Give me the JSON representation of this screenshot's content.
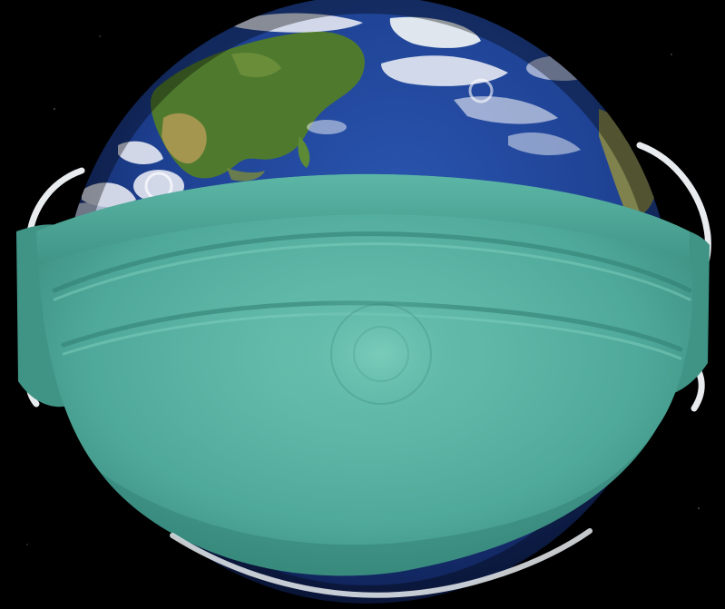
{
  "scene": {
    "subject": "earth-wearing-surgical-mask",
    "colors": {
      "space": "#000000",
      "ocean_deep": "#0e1f5c",
      "ocean_mid": "#1d3f8f",
      "land_green": "#4f7a2e",
      "land_desert": "#b39a55",
      "cloud": "#f2f4f8",
      "mask_base": "#4fa99a",
      "mask_light": "#6cc3b2",
      "mask_shadow": "#2f7d70",
      "ear_loop": "#e8ecee"
    }
  }
}
